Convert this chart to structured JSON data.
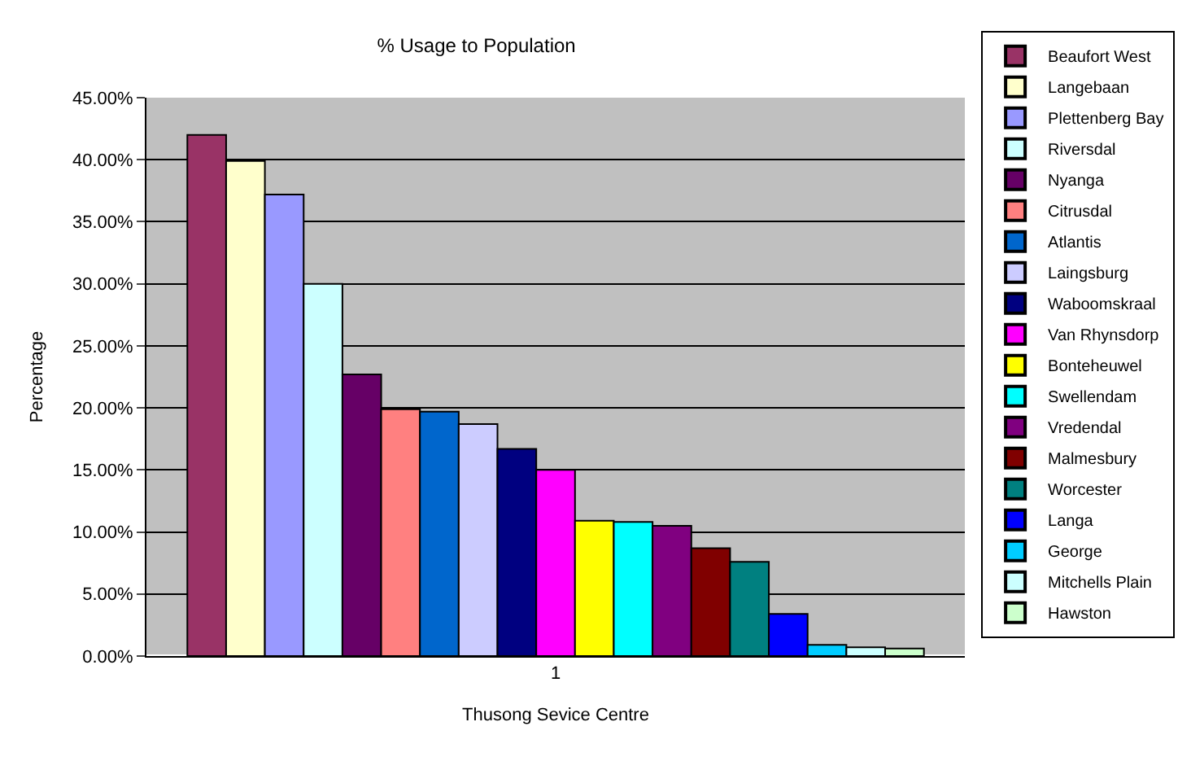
{
  "chart_data": {
    "type": "bar",
    "title": "% Usage to Population",
    "xlabel": "Thusong Sevice Centre",
    "ylabel": "Percentage",
    "categories": [
      "1"
    ],
    "series": [
      {
        "name": "Beaufort West",
        "color": "#993366",
        "values": [
          42.0
        ]
      },
      {
        "name": "Langebaan",
        "color": "#ffffcc",
        "values": [
          39.9
        ]
      },
      {
        "name": "Plettenberg Bay",
        "color": "#9999ff",
        "values": [
          37.2
        ]
      },
      {
        "name": "Riversdal",
        "color": "#ccffff",
        "values": [
          30.0
        ]
      },
      {
        "name": "Nyanga",
        "color": "#660066",
        "values": [
          22.7
        ]
      },
      {
        "name": "Citrusdal",
        "color": "#ff8080",
        "values": [
          19.9
        ]
      },
      {
        "name": "Atlantis",
        "color": "#0066cc",
        "values": [
          19.7
        ]
      },
      {
        "name": "Laingsburg",
        "color": "#ccccff",
        "values": [
          18.7
        ]
      },
      {
        "name": "Waboomskraal",
        "color": "#000080",
        "values": [
          16.7
        ]
      },
      {
        "name": "Van Rhynsdorp",
        "color": "#ff00ff",
        "values": [
          15.0
        ]
      },
      {
        "name": "Bonteheuwel",
        "color": "#ffff00",
        "values": [
          10.9
        ]
      },
      {
        "name": "Swellendam",
        "color": "#00ffff",
        "values": [
          10.8
        ]
      },
      {
        "name": "Vredendal",
        "color": "#800080",
        "values": [
          10.5
        ]
      },
      {
        "name": "Malmesbury",
        "color": "#800000",
        "values": [
          8.7
        ]
      },
      {
        "name": "Worcester",
        "color": "#008080",
        "values": [
          7.6
        ]
      },
      {
        "name": "Langa",
        "color": "#0000ff",
        "values": [
          3.4
        ]
      },
      {
        "name": "George",
        "color": "#00ccff",
        "values": [
          0.9
        ]
      },
      {
        "name": "Mitchells Plain",
        "color": "#ccffff",
        "values": [
          0.7
        ]
      },
      {
        "name": "Hawston",
        "color": "#ccffcc",
        "values": [
          0.6
        ]
      }
    ],
    "ylim": [
      0,
      45
    ],
    "yticks": [
      {
        "value": 0,
        "label": "0.00%"
      },
      {
        "value": 5,
        "label": "5.00%"
      },
      {
        "value": 10,
        "label": "10.00%"
      },
      {
        "value": 15,
        "label": "15.00%"
      },
      {
        "value": 20,
        "label": "20.00%"
      },
      {
        "value": 25,
        "label": "25.00%"
      },
      {
        "value": 30,
        "label": "30.00%"
      },
      {
        "value": 35,
        "label": "35.00%"
      },
      {
        "value": 40,
        "label": "40.00%"
      },
      {
        "value": 45,
        "label": "45.00%"
      }
    ],
    "grid": "y",
    "legend": "right"
  }
}
